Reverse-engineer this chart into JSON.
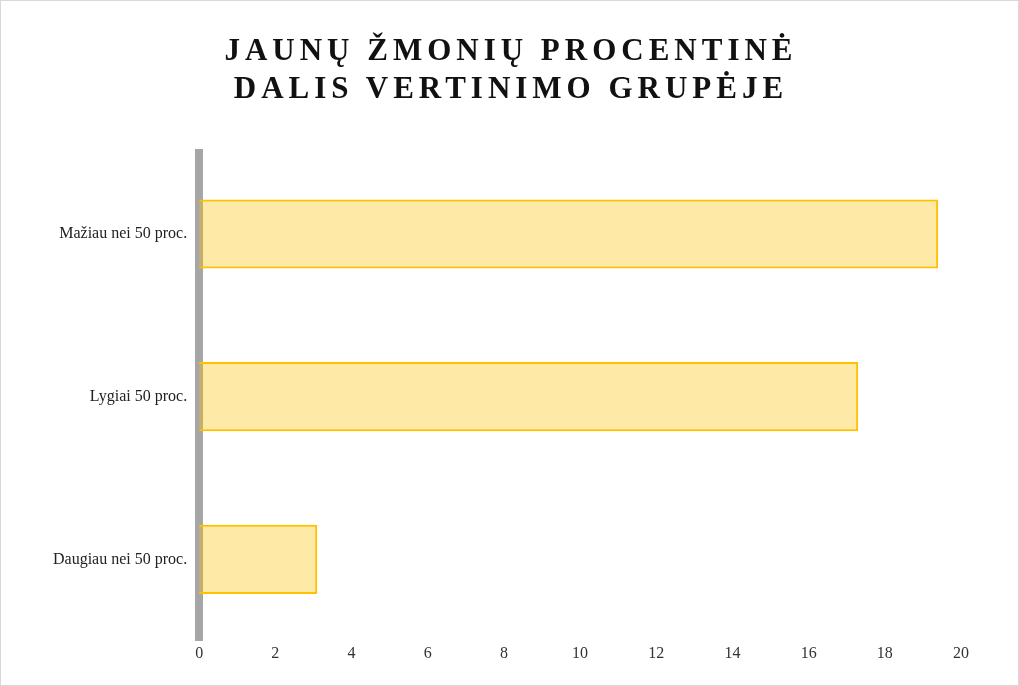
{
  "chart_data": {
    "type": "bar",
    "title": "JAUNŲ ŽMONIŲ PROCENTINĖ DALIS VERTINIMO GRUPĖJE",
    "orientation": "horizontal",
    "categories": [
      "Mažiau nei 50 proc.",
      "Lygiai 50 proc.",
      "Daugiau nei 50 proc."
    ],
    "values": [
      19.4,
      17.3,
      3.1
    ],
    "color": "#ffc000",
    "xlim": [
      0,
      20
    ],
    "xticks": [
      0,
      2,
      4,
      6,
      8,
      10,
      12,
      14,
      16,
      18,
      20
    ],
    "grid": false,
    "legend": false
  }
}
